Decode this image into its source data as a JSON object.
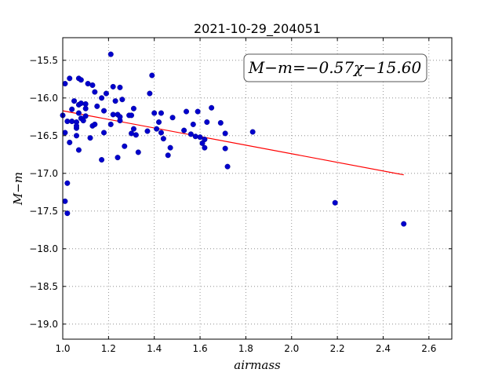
{
  "chart_data": {
    "type": "scatter",
    "title": "2021-10-29_204051",
    "xlabel": "airmass",
    "ylabel": "M−m",
    "xlim": [
      1.0,
      2.7
    ],
    "ylim": [
      -15.2,
      -19.2
    ],
    "y_inverted": true,
    "grid": true,
    "x_ticks": [
      "1.0",
      "1.2",
      "1.4",
      "1.6",
      "1.8",
      "2.0",
      "2.2",
      "2.4",
      "2.6"
    ],
    "y_ticks": [
      "−15.5",
      "−16.0",
      "−16.5",
      "−17.0",
      "−17.5",
      "−18.0",
      "−18.5",
      "−19.0"
    ],
    "annotation": "M−m=−0.57χ−15.60",
    "fit": {
      "slope": -0.57,
      "intercept": -15.6,
      "x_range": [
        1.0,
        2.49
      ],
      "color": "#ff0000"
    },
    "marker_color": "#0000cc",
    "points": [
      [
        1.0,
        -16.23
      ],
      [
        1.01,
        -16.46
      ],
      [
        1.01,
        -17.37
      ],
      [
        1.02,
        -17.13
      ],
      [
        1.02,
        -17.53
      ],
      [
        1.01,
        -15.81
      ],
      [
        1.02,
        -16.31
      ],
      [
        1.03,
        -15.74
      ],
      [
        1.03,
        -16.59
      ],
      [
        1.04,
        -16.15
      ],
      [
        1.04,
        -16.31
      ],
      [
        1.05,
        -16.04
      ],
      [
        1.06,
        -16.32
      ],
      [
        1.06,
        -16.4
      ],
      [
        1.06,
        -16.5
      ],
      [
        1.06,
        -16.37
      ],
      [
        1.07,
        -16.69
      ],
      [
        1.07,
        -16.2
      ],
      [
        1.07,
        -16.09
      ],
      [
        1.07,
        -15.74
      ],
      [
        1.08,
        -15.76
      ],
      [
        1.08,
        -16.27
      ],
      [
        1.08,
        -16.07
      ],
      [
        1.09,
        -16.3
      ],
      [
        1.1,
        -16.08
      ],
      [
        1.1,
        -16.24
      ],
      [
        1.1,
        -16.14
      ],
      [
        1.11,
        -15.81
      ],
      [
        1.12,
        -16.53
      ],
      [
        1.13,
        -15.83
      ],
      [
        1.13,
        -16.37
      ],
      [
        1.14,
        -16.35
      ],
      [
        1.14,
        -15.92
      ],
      [
        1.15,
        -16.11
      ],
      [
        1.17,
        -16.82
      ],
      [
        1.17,
        -16.0
      ],
      [
        1.18,
        -16.46
      ],
      [
        1.18,
        -16.17
      ],
      [
        1.19,
        -15.94
      ],
      [
        1.21,
        -15.42
      ],
      [
        1.21,
        -16.35
      ],
      [
        1.22,
        -15.85
      ],
      [
        1.22,
        -16.22
      ],
      [
        1.23,
        -16.04
      ],
      [
        1.24,
        -16.22
      ],
      [
        1.24,
        -16.79
      ],
      [
        1.25,
        -16.3
      ],
      [
        1.25,
        -15.86
      ],
      [
        1.25,
        -16.25
      ],
      [
        1.26,
        -16.02
      ],
      [
        1.27,
        -16.64
      ],
      [
        1.29,
        -16.23
      ],
      [
        1.3,
        -16.47
      ],
      [
        1.3,
        -16.23
      ],
      [
        1.31,
        -16.41
      ],
      [
        1.31,
        -16.14
      ],
      [
        1.32,
        -16.49
      ],
      [
        1.33,
        -16.72
      ],
      [
        1.37,
        -16.44
      ],
      [
        1.38,
        -15.94
      ],
      [
        1.39,
        -15.7
      ],
      [
        1.4,
        -16.2
      ],
      [
        1.41,
        -16.41
      ],
      [
        1.42,
        -16.32
      ],
      [
        1.43,
        -16.2
      ],
      [
        1.43,
        -16.46
      ],
      [
        1.44,
        -16.54
      ],
      [
        1.46,
        -16.76
      ],
      [
        1.47,
        -16.66
      ],
      [
        1.48,
        -16.26
      ],
      [
        1.53,
        -16.43
      ],
      [
        1.54,
        -16.18
      ],
      [
        1.56,
        -16.48
      ],
      [
        1.57,
        -16.35
      ],
      [
        1.58,
        -16.51
      ],
      [
        1.59,
        -16.18
      ],
      [
        1.6,
        -16.52
      ],
      [
        1.61,
        -16.6
      ],
      [
        1.62,
        -16.66
      ],
      [
        1.62,
        -16.55
      ],
      [
        1.63,
        -16.32
      ],
      [
        1.65,
        -16.13
      ],
      [
        1.69,
        -16.33
      ],
      [
        1.71,
        -16.47
      ],
      [
        1.71,
        -16.67
      ],
      [
        1.72,
        -16.91
      ],
      [
        1.83,
        -16.45
      ],
      [
        2.19,
        -17.39
      ],
      [
        2.49,
        -17.67
      ]
    ]
  }
}
